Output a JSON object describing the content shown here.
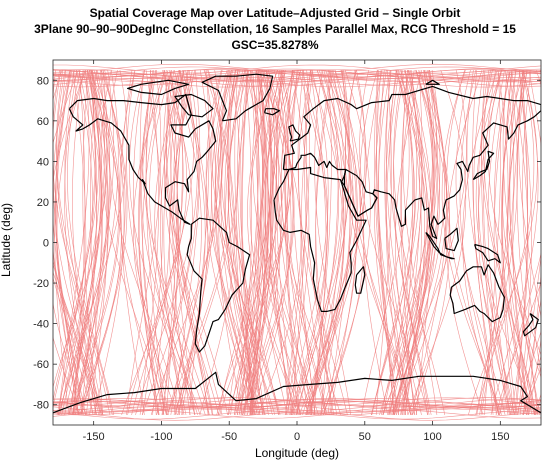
{
  "chart_data": {
    "type": "map",
    "title_lines": [
      "Spatial Coverage Map over Latitude–Adjusted Grid – Single Orbit",
      "3Plane 90–90–90DegInc Constellation, 16 Samples Parallel Max, RCG Threshold = 15",
      "GSC=35.8278%"
    ],
    "xlabel": "Longitude (deg)",
    "ylabel": "Latitude (deg)",
    "xlim": [
      -180,
      180
    ],
    "ylim": [
      -90,
      90
    ],
    "xticks": [
      -150,
      -100,
      -50,
      0,
      50,
      100,
      150
    ],
    "yticks": [
      80,
      60,
      40,
      20,
      0,
      -20,
      -40,
      -60,
      -80
    ],
    "grid": false,
    "coverage_color": "#f08080",
    "coastline_color": "#000000",
    "coverage_latitude_extent": [
      -85,
      85
    ],
    "coverage_bands_longitude": [
      [
        -172,
        -145
      ],
      [
        -118,
        -68
      ],
      [
        -42,
        -28
      ],
      [
        -8,
        30
      ],
      [
        62,
        95
      ],
      [
        135,
        180
      ]
    ],
    "gsc_percent": 35.8278
  }
}
